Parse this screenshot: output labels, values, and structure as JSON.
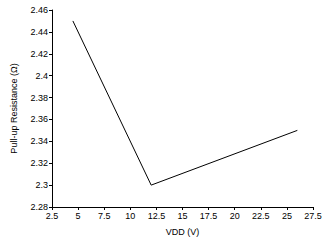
{
  "chart_data": {
    "type": "line",
    "x_label": "VDD (V)",
    "y_label": "Pull-up Resistance (Ω)",
    "x": [
      4.5,
      12,
      26
    ],
    "values": [
      2.45,
      2.3,
      2.35
    ],
    "color": "#000000",
    "xlim": [
      2.5,
      27.5
    ],
    "xticks": [
      2.5,
      5,
      7.5,
      10,
      12.5,
      15,
      17.5,
      20,
      22.5,
      25,
      27.5
    ],
    "ylim": [
      2.28,
      2.46
    ],
    "yticks": [
      2.28,
      2.3,
      2.32,
      2.34,
      2.36,
      2.38,
      2.4,
      2.42,
      2.44,
      2.46
    ],
    "grid": false
  }
}
